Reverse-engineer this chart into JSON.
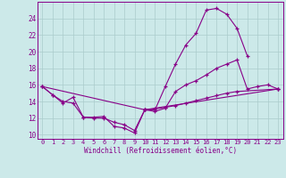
{
  "xlabel": "Windchill (Refroidissement éolien,°C)",
  "background_color": "#cce9e9",
  "line_color": "#880088",
  "grid_color": "#aacccc",
  "xlim_min": -0.5,
  "xlim_max": 23.5,
  "ylim_min": 9.5,
  "ylim_max": 26.0,
  "yticks": [
    10,
    12,
    14,
    16,
    18,
    20,
    22,
    24
  ],
  "xticks": [
    0,
    1,
    2,
    3,
    4,
    5,
    6,
    7,
    8,
    9,
    10,
    11,
    12,
    13,
    14,
    15,
    16,
    17,
    18,
    19,
    20,
    21,
    22,
    23
  ],
  "line1_x": [
    0,
    1,
    2,
    3,
    4,
    5,
    6,
    7,
    8,
    9,
    10,
    11,
    12,
    13,
    14,
    15,
    16,
    17,
    18,
    19,
    20
  ],
  "line1_y": [
    15.8,
    14.8,
    13.8,
    14.5,
    12.1,
    12.1,
    12.2,
    11.0,
    10.8,
    10.2,
    13.0,
    13.0,
    15.8,
    18.5,
    20.8,
    22.2,
    25.0,
    25.2,
    24.5,
    22.8,
    19.5
  ],
  "line2_x": [
    0,
    1,
    2,
    3,
    4,
    5,
    6,
    7,
    8,
    9,
    10,
    11,
    12,
    13,
    14,
    15,
    16,
    17,
    18,
    19,
    20,
    21,
    22,
    23
  ],
  "line2_y": [
    15.8,
    14.8,
    14.0,
    13.8,
    12.1,
    12.0,
    12.0,
    11.5,
    11.2,
    10.5,
    13.0,
    12.8,
    13.2,
    15.2,
    16.0,
    16.5,
    17.2,
    18.0,
    18.5,
    19.0,
    15.5,
    15.8,
    16.0,
    15.5
  ],
  "line3_x": [
    0,
    10,
    23
  ],
  "line3_y": [
    15.8,
    13.0,
    15.5
  ],
  "line4_x": [
    10,
    11,
    12,
    13,
    14,
    15,
    16,
    17,
    18,
    19,
    23
  ],
  "line4_y": [
    13.0,
    13.1,
    13.3,
    13.5,
    13.8,
    14.1,
    14.4,
    14.7,
    15.0,
    15.2,
    15.5
  ],
  "tick_fontsize": 5.0,
  "xlabel_fontsize": 5.5
}
